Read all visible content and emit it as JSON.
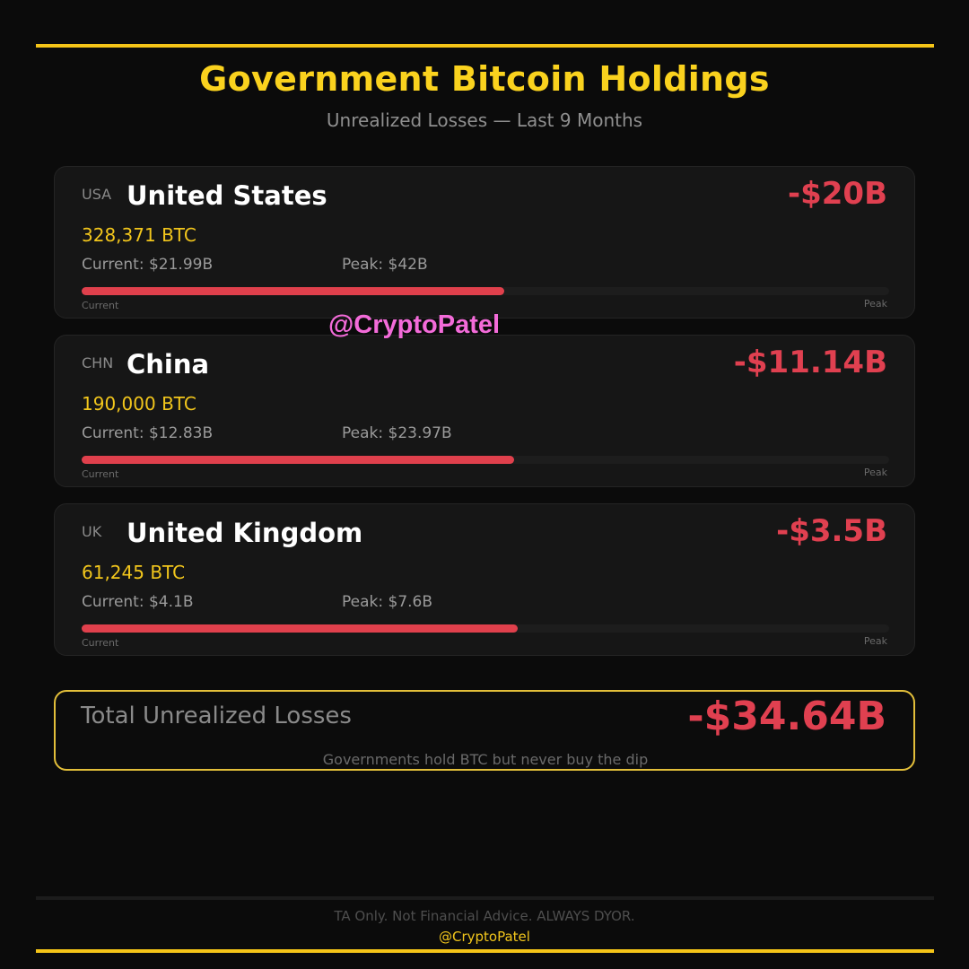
{
  "header": {
    "title": "Government Bitcoin Holdings",
    "subtitle": "Unrealized Losses  —  Last 9 Months"
  },
  "watermark": "@CryptoPatel",
  "chart_data": {
    "type": "bar",
    "title": "Government Bitcoin Holdings",
    "subtitle": "Unrealized Losses  —  Last 9 Months",
    "bar_start_label": "Current",
    "bar_end_label": "Peak",
    "entries": [
      {
        "code": "USA",
        "country": "United States",
        "loss_label": "-$20B",
        "btc_label": "328,371 BTC",
        "current_label": "Current: $21.99B",
        "peak_label": "Peak: $42B",
        "current_value": 21.99,
        "peak_value": 42,
        "btc": 328371
      },
      {
        "code": "CHN",
        "country": "China",
        "loss_label": "-$11.14B",
        "btc_label": "190,000 BTC",
        "current_label": "Current: $12.83B",
        "peak_label": "Peak: $23.97B",
        "current_value": 12.83,
        "peak_value": 23.97,
        "btc": 190000
      },
      {
        "code": "UK",
        "country": "United Kingdom",
        "loss_label": "-$3.5B",
        "btc_label": "61,245 BTC",
        "current_label": "Current: $4.1B",
        "peak_label": "Peak: $7.6B",
        "current_value": 4.1,
        "peak_value": 7.6,
        "btc": 61245
      }
    ]
  },
  "total": {
    "label": "Total Unrealized Losses",
    "value": "-$34.64B",
    "note": "Governments hold BTC but never buy the dip"
  },
  "footer": {
    "disclaimer": "TA Only. Not Financial Advice. ALWAYS DYOR.",
    "handle": "@CryptoPatel"
  },
  "colors": {
    "accent": "#f5c518",
    "loss": "#e04050",
    "background": "#0b0b0b",
    "card": "#161616"
  }
}
